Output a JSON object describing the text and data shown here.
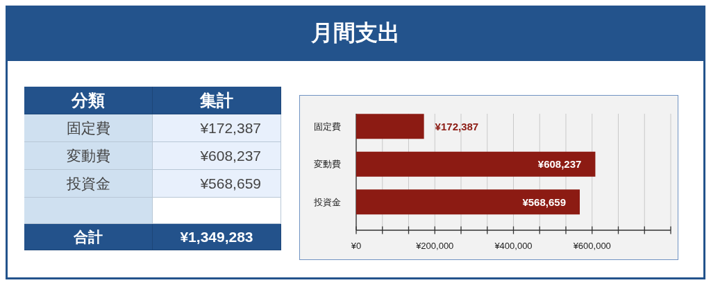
{
  "chart_data": [
    {
      "type": "other",
      "title": "月間支出",
      "annotations": [
        "分類",
        "集計",
        "固定費",
        "¥172,387",
        "変動費",
        "¥608,237",
        "投資金",
        "¥568,659",
        "合計",
        "¥1,349,283"
      ]
    },
    {
      "type": "bar",
      "orientation": "horizontal",
      "categories": [
        "固定費",
        "変動費",
        "投資金"
      ],
      "values": [
        172387,
        608237,
        568659
      ],
      "color": "#8c1b13",
      "value_labels": [
        "¥172,387",
        "¥608,237",
        "¥568,659"
      ],
      "xlim": [
        0,
        800000
      ],
      "xticks": [
        {
          "value": 0,
          "label": "¥0"
        },
        {
          "value": 66666.67,
          "label": null
        },
        {
          "value": 133333.33,
          "label": null
        },
        {
          "value": 200000,
          "label": "¥200,000"
        },
        {
          "value": 266666.67,
          "label": null
        },
        {
          "value": 333333.33,
          "label": null
        },
        {
          "value": 400000,
          "label": "¥400,000"
        },
        {
          "value": 466666.67,
          "label": null
        },
        {
          "value": 533333.33,
          "label": null
        },
        {
          "value": 600000,
          "label": "¥600,000"
        },
        {
          "value": 666666.67,
          "label": null
        },
        {
          "value": 733333.33,
          "label": null
        },
        {
          "value": 800000,
          "label": null
        }
      ],
      "grid": "x"
    }
  ]
}
